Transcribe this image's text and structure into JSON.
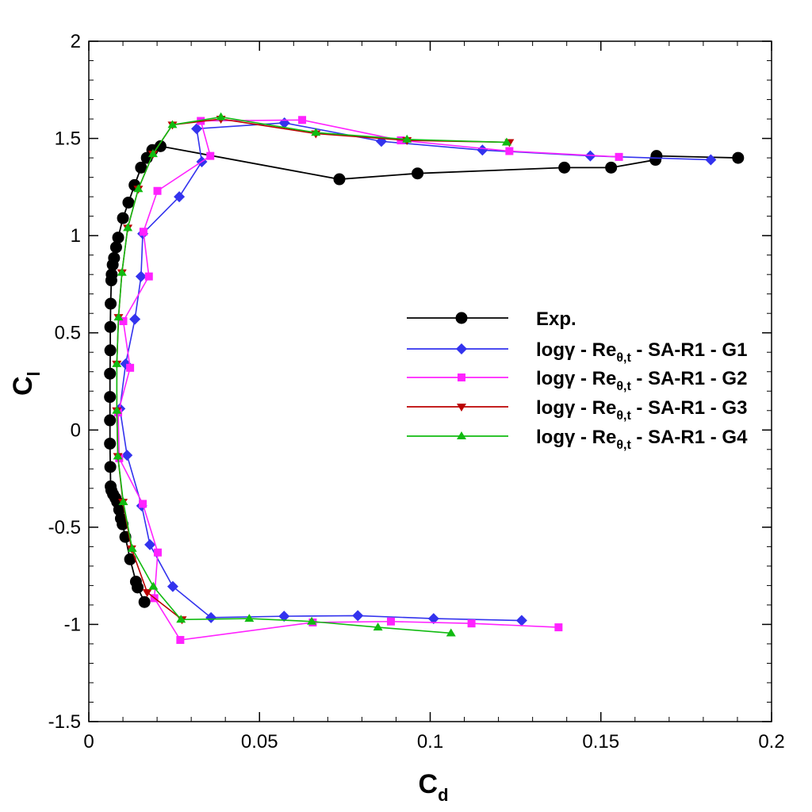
{
  "chart_data": {
    "type": "line",
    "title": "",
    "xlabel": "C",
    "xlabel_sub": "d",
    "ylabel": "C",
    "ylabel_sub": "l",
    "xlim": [
      0,
      0.2
    ],
    "ylim": [
      -1.5,
      2
    ],
    "x_ticks": [
      0,
      0.05,
      0.1,
      0.15,
      0.2
    ],
    "x_tick_labels": [
      "0",
      "0.05",
      "0.1",
      "0.15",
      "0.2"
    ],
    "y_ticks": [
      -1.5,
      -1,
      -0.5,
      0,
      0.5,
      1,
      1.5,
      2
    ],
    "y_tick_labels": [
      "-1.5",
      "-1",
      "-0.5",
      "0",
      "0.5",
      "1",
      "1.5",
      "2"
    ],
    "grid": false,
    "legend_position": "center-right",
    "series": [
      {
        "name": "Exp.",
        "label": {
          "main": "Exp.",
          "sub": "",
          "tail": ""
        },
        "color": "#000000",
        "marker": "circle",
        "points": [
          [
            0.0163,
            -0.885
          ],
          [
            0.0143,
            -0.81
          ],
          [
            0.0138,
            -0.78
          ],
          [
            0.0121,
            -0.665
          ],
          [
            0.0107,
            -0.55
          ],
          [
            0.0099,
            -0.485
          ],
          [
            0.0094,
            -0.455
          ],
          [
            0.0089,
            -0.41
          ],
          [
            0.0083,
            -0.37
          ],
          [
            0.0078,
            -0.35
          ],
          [
            0.0071,
            -0.33
          ],
          [
            0.0066,
            -0.31
          ],
          [
            0.0064,
            -0.29
          ],
          [
            0.0063,
            -0.19
          ],
          [
            0.0062,
            -0.07
          ],
          [
            0.0062,
            0.05
          ],
          [
            0.0062,
            0.17
          ],
          [
            0.0062,
            0.29
          ],
          [
            0.0063,
            0.41
          ],
          [
            0.0063,
            0.53
          ],
          [
            0.0064,
            0.65
          ],
          [
            0.0066,
            0.77
          ],
          [
            0.0067,
            0.8
          ],
          [
            0.007,
            0.85
          ],
          [
            0.0074,
            0.885
          ],
          [
            0.008,
            0.94
          ],
          [
            0.0086,
            0.99
          ],
          [
            0.01,
            1.09
          ],
          [
            0.0116,
            1.17
          ],
          [
            0.0134,
            1.26
          ],
          [
            0.0153,
            1.35
          ],
          [
            0.017,
            1.4
          ],
          [
            0.0186,
            1.44
          ],
          [
            0.021,
            1.46
          ],
          [
            0.0734,
            1.29
          ],
          [
            0.0963,
            1.32
          ],
          [
            0.1393,
            1.35
          ],
          [
            0.153,
            1.35
          ],
          [
            0.166,
            1.39
          ],
          [
            0.1663,
            1.41
          ],
          [
            0.1902,
            1.4
          ]
        ]
      },
      {
        "name": "logγ - Reθ,t - SA-R1 - G1",
        "label": {
          "main": "logγ - Re",
          "sub": "θ,t",
          "tail": " - SA-R1 - G1"
        },
        "color": "#3333ee",
        "marker": "diamond",
        "points": [
          [
            0.1268,
            -0.98
          ],
          [
            0.101,
            -0.97
          ],
          [
            0.0788,
            -0.955
          ],
          [
            0.0572,
            -0.958
          ],
          [
            0.0358,
            -0.965
          ],
          [
            0.0246,
            -0.805
          ],
          [
            0.0179,
            -0.59
          ],
          [
            0.0155,
            -0.39
          ],
          [
            0.0112,
            -0.13
          ],
          [
            0.0091,
            0.11
          ],
          [
            0.0108,
            0.34
          ],
          [
            0.0135,
            0.57
          ],
          [
            0.0153,
            0.79
          ],
          [
            0.0158,
            1.01
          ],
          [
            0.0265,
            1.2
          ],
          [
            0.0331,
            1.38
          ],
          [
            0.0316,
            1.55
          ],
          [
            0.0573,
            1.58
          ],
          [
            0.0857,
            1.485
          ],
          [
            0.1153,
            1.44
          ],
          [
            0.1469,
            1.41
          ],
          [
            0.1822,
            1.39
          ]
        ]
      },
      {
        "name": "logγ - Reθ,t - SA-R1 - G2",
        "label": {
          "main": "logγ - Re",
          "sub": "θ,t",
          "tail": " - SA-R1 - G2"
        },
        "color": "#ff22ff",
        "marker": "square",
        "points": [
          [
            0.1376,
            -1.015
          ],
          [
            0.1121,
            -0.995
          ],
          [
            0.0885,
            -0.985
          ],
          [
            0.0656,
            -0.99
          ],
          [
            0.0268,
            -1.08
          ],
          [
            0.0192,
            -0.865
          ],
          [
            0.0202,
            -0.63
          ],
          [
            0.0158,
            -0.38
          ],
          [
            0.0089,
            -0.145
          ],
          [
            0.0086,
            0.09
          ],
          [
            0.0121,
            0.32
          ],
          [
            0.0101,
            0.56
          ],
          [
            0.0176,
            0.79
          ],
          [
            0.016,
            1.02
          ],
          [
            0.0201,
            1.23
          ],
          [
            0.0356,
            1.41
          ],
          [
            0.0328,
            1.59
          ],
          [
            0.0625,
            1.595
          ],
          [
            0.0914,
            1.49
          ],
          [
            0.1232,
            1.435
          ],
          [
            0.1553,
            1.405
          ]
        ]
      },
      {
        "name": "logγ - Reθ,t - SA-R1 - G3",
        "label": {
          "main": "logγ - Re",
          "sub": "θ,t",
          "tail": " - SA-R1 - G3"
        },
        "color": "#bb0000",
        "marker": "triangle-down",
        "points": [
          [
            0.0273,
            -0.975
          ],
          [
            0.0171,
            -0.835
          ],
          [
            0.0125,
            -0.61
          ],
          [
            0.01,
            -0.37
          ],
          [
            0.0085,
            -0.135
          ],
          [
            0.0082,
            0.1
          ],
          [
            0.0082,
            0.34
          ],
          [
            0.0087,
            0.58
          ],
          [
            0.0097,
            0.81
          ],
          [
            0.0114,
            1.04
          ],
          [
            0.0145,
            1.24
          ],
          [
            0.0188,
            1.42
          ],
          [
            0.0245,
            1.57
          ],
          [
            0.0387,
            1.6
          ],
          [
            0.0665,
            1.525
          ],
          [
            0.0932,
            1.49
          ],
          [
            0.1232,
            1.48
          ]
        ]
      },
      {
        "name": "logγ - Reθ,t - SA-R1 - G4",
        "label": {
          "main": "logγ - Re",
          "sub": "θ,t",
          "tail": " - SA-R1 - G4"
        },
        "color": "#11bb11",
        "marker": "triangle-up",
        "points": [
          [
            0.1061,
            -1.045
          ],
          [
            0.0847,
            -1.015
          ],
          [
            0.0653,
            -0.985
          ],
          [
            0.047,
            -0.97
          ],
          [
            0.027,
            -0.975
          ],
          [
            0.0189,
            -0.805
          ],
          [
            0.0127,
            -0.61
          ],
          [
            0.0101,
            -0.37
          ],
          [
            0.0085,
            -0.135
          ],
          [
            0.0082,
            0.1
          ],
          [
            0.0082,
            0.34
          ],
          [
            0.0087,
            0.58
          ],
          [
            0.0097,
            0.81
          ],
          [
            0.0114,
            1.04
          ],
          [
            0.0145,
            1.24
          ],
          [
            0.0188,
            1.42
          ],
          [
            0.0245,
            1.57
          ],
          [
            0.0387,
            1.61
          ],
          [
            0.0665,
            1.53
          ],
          [
            0.0932,
            1.495
          ],
          [
            0.1224,
            1.48
          ]
        ]
      }
    ]
  }
}
